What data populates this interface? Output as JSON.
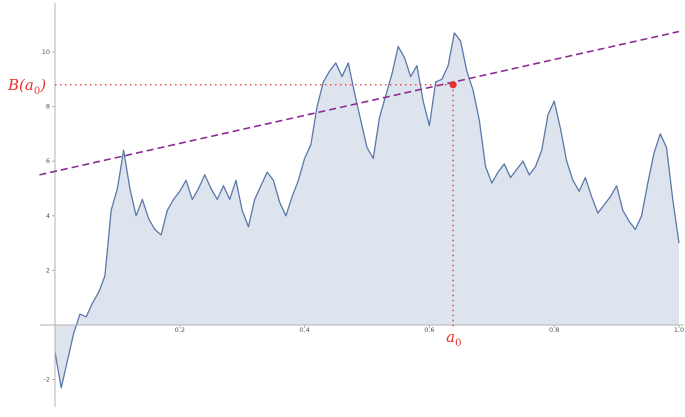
{
  "chart_data": {
    "type": "area",
    "title": "",
    "xlabel": "",
    "ylabel": "",
    "xlim": [
      -0.025,
      1.0
    ],
    "ylim": [
      -3.0,
      11.8
    ],
    "grid": false,
    "x_ticks": [
      {
        "value": 0.2,
        "label": "0.2"
      },
      {
        "value": 0.4,
        "label": "0.4"
      },
      {
        "value": 0.6,
        "label": "0.6"
      },
      {
        "value": 0.8,
        "label": "0.8"
      },
      {
        "value": 1.0,
        "label": "1.0"
      }
    ],
    "y_ticks": [
      {
        "value": -2,
        "label": "-2"
      },
      {
        "value": 2,
        "label": "2"
      },
      {
        "value": 4,
        "label": "4"
      },
      {
        "value": 6,
        "label": "6"
      },
      {
        "value": 8,
        "label": "8"
      },
      {
        "value": 10,
        "label": "10"
      }
    ],
    "series": [
      {
        "x": [
          0.0,
          0.01,
          0.02,
          0.03,
          0.04,
          0.05,
          0.06,
          0.07,
          0.08,
          0.09,
          0.1,
          0.11,
          0.12,
          0.13,
          0.14,
          0.15,
          0.16,
          0.17,
          0.18,
          0.19,
          0.2,
          0.21,
          0.22,
          0.23,
          0.24,
          0.25,
          0.26,
          0.27,
          0.28,
          0.29,
          0.3,
          0.31,
          0.32,
          0.33,
          0.34,
          0.35,
          0.36,
          0.37,
          0.38,
          0.39,
          0.4,
          0.41,
          0.42,
          0.43,
          0.44,
          0.45,
          0.46,
          0.47,
          0.48,
          0.49,
          0.5,
          0.51,
          0.52,
          0.53,
          0.54,
          0.55,
          0.56,
          0.57,
          0.58,
          0.59,
          0.6,
          0.61,
          0.62,
          0.63,
          0.64,
          0.65,
          0.66,
          0.67,
          0.68,
          0.69,
          0.7,
          0.71,
          0.72,
          0.73,
          0.74,
          0.75,
          0.76,
          0.77,
          0.78,
          0.79,
          0.8,
          0.81,
          0.82,
          0.83,
          0.84,
          0.85,
          0.86,
          0.87,
          0.88,
          0.89,
          0.9,
          0.91,
          0.92,
          0.93,
          0.94,
          0.95,
          0.96,
          0.97,
          0.98,
          0.99,
          1.0
        ],
        "y": [
          -1.0,
          -2.3,
          -1.3,
          -0.3,
          0.4,
          0.3,
          0.8,
          1.2,
          1.8,
          4.2,
          5.0,
          6.4,
          5.0,
          4.0,
          4.6,
          3.9,
          3.5,
          3.3,
          4.2,
          4.6,
          4.9,
          5.3,
          4.6,
          5.0,
          5.5,
          5.0,
          4.6,
          5.1,
          4.6,
          5.3,
          4.2,
          3.6,
          4.6,
          5.1,
          5.6,
          5.3,
          4.5,
          4.0,
          4.7,
          5.3,
          6.1,
          6.6,
          8.0,
          8.9,
          9.3,
          9.6,
          9.1,
          9.6,
          8.5,
          7.5,
          6.5,
          6.1,
          7.6,
          8.4,
          9.2,
          10.2,
          9.8,
          9.1,
          9.5,
          8.2,
          7.3,
          8.9,
          9.0,
          9.5,
          10.7,
          10.4,
          9.3,
          8.6,
          7.5,
          5.8,
          5.2,
          5.6,
          5.9,
          5.4,
          5.7,
          6.0,
          5.5,
          5.8,
          6.4,
          7.7,
          8.2,
          7.2,
          6.0,
          5.3,
          4.9,
          5.4,
          4.7,
          4.1,
          4.4,
          4.7,
          5.1,
          4.2,
          3.8,
          3.5,
          4.0,
          5.2,
          6.3,
          7.0,
          6.5,
          4.6,
          3.0
        ],
        "color": "#5a79a8",
        "fill": "#dee4ee"
      }
    ],
    "reference_line": {
      "x": [
        -0.025,
        1.0
      ],
      "y": [
        5.5,
        10.75
      ],
      "color": "#8b2a93",
      "style": "dashed"
    },
    "annotation": {
      "point": {
        "x": 0.638,
        "y": 8.8,
        "color": "#e8312e"
      },
      "x_label": "a",
      "x_label_sub": "0",
      "y_label_prefix": "B(a",
      "y_label_sub": "0",
      "y_label_suffix": ")",
      "color": "#e8312e"
    }
  }
}
